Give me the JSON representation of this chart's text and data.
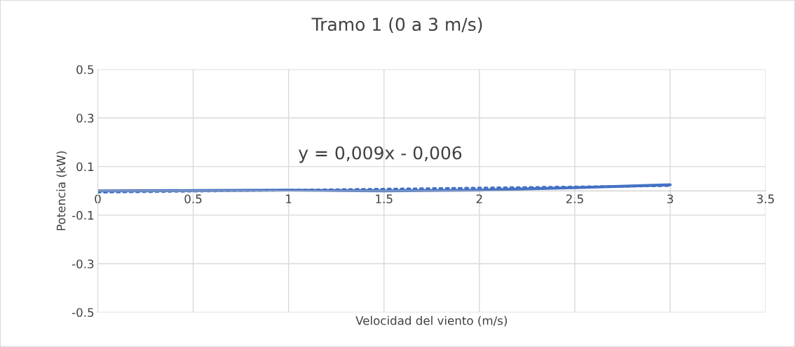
{
  "chart_data": {
    "type": "line",
    "title": "Tramo 1 (0 a 3 m/s)",
    "xlabel": "Velocidad del viento (m/s)",
    "ylabel": "Potencia (kW)",
    "series": [
      {
        "color": "#4472c4",
        "x": [
          0,
          0.5,
          1,
          1.5,
          2,
          2.5,
          3
        ],
        "values": [
          0,
          0.001,
          0.003,
          0,
          0.003,
          0.013,
          0.025
        ],
        "line_style": "solid"
      },
      {
        "color": "#4472c4",
        "x": [
          0,
          3
        ],
        "values": [
          -0.006,
          0.021
        ],
        "line_style": "dotted"
      }
    ],
    "annotations": [
      "y = 0,009x - 0,006"
    ],
    "xlim": [
      0,
      3.5
    ],
    "xticks": [
      0,
      0.5,
      1,
      1.5,
      2,
      2.5,
      3,
      3.5
    ],
    "ylim": [
      -0.5,
      0.5
    ],
    "yticks": [
      -0.5,
      -0.3,
      -0.1,
      0.1,
      0.3,
      0.5
    ],
    "grid": true,
    "marker": "none"
  }
}
